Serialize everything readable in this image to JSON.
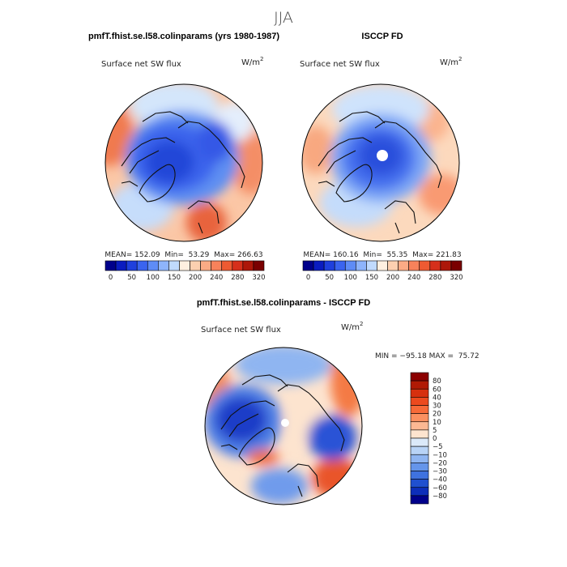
{
  "suptitle": "JJA",
  "panels": [
    {
      "title": "pmfT.fhist.se.l58.colinparams (yrs 1980-1987)",
      "field_label": "Surface net SW flux",
      "units_base": "W/m",
      "units_exp": "2",
      "stats_text": "MEAN= 152.09  Min=  53.29  Max= 266.63"
    },
    {
      "title": "ISCCP FD",
      "field_label": "Surface net SW flux",
      "units_base": "W/m",
      "units_exp": "2",
      "stats_text": "MEAN= 160.16  Min=  55.35  Max= 221.83"
    },
    {
      "title": "pmfT.fhist.se.l58.colinparams - ISCCP FD",
      "field_label": "Surface net SW flux",
      "units_base": "W/m",
      "units_exp": "2",
      "stats_text": "MIN = −95.18 MAX =  75.72"
    }
  ],
  "chart_data": [
    {
      "type": "heatmap",
      "projection": "north-polar-stereographic",
      "title": "pmfT.fhist.se.l58.colinparams (yrs 1980-1987)",
      "variable": "Surface net SW flux",
      "units": "W/m2",
      "mean": 152.09,
      "min": 53.29,
      "max": 266.63,
      "colorbar": {
        "orientation": "horizontal",
        "tick_labels": [
          "0",
          "50",
          "100",
          "150",
          "200",
          "240",
          "280",
          "320"
        ],
        "colors": [
          "#00008b",
          "#0a1cc0",
          "#1f40dd",
          "#3a64ef",
          "#5e8cf6",
          "#8eb4fb",
          "#c0dafd",
          "#fef0e0",
          "#fcd0b0",
          "#fbab85",
          "#f7825b",
          "#ee5a32",
          "#d6301b",
          "#ad1709",
          "#7a0000"
        ]
      }
    },
    {
      "type": "heatmap",
      "projection": "north-polar-stereographic",
      "title": "ISCCP FD",
      "variable": "Surface net SW flux",
      "units": "W/m2",
      "mean": 160.16,
      "min": 55.35,
      "max": 221.83,
      "colorbar": {
        "orientation": "horizontal",
        "tick_labels": [
          "0",
          "50",
          "100",
          "150",
          "200",
          "240",
          "280",
          "320"
        ],
        "colors": [
          "#00008b",
          "#0a1cc0",
          "#1f40dd",
          "#3a64ef",
          "#5e8cf6",
          "#8eb4fb",
          "#c0dafd",
          "#fef0e0",
          "#fcd0b0",
          "#fbab85",
          "#f7825b",
          "#ee5a32",
          "#d6301b",
          "#ad1709",
          "#7a0000"
        ]
      }
    },
    {
      "type": "heatmap",
      "projection": "north-polar-stereographic",
      "title": "pmfT.fhist.se.l58.colinparams - ISCCP FD",
      "variable": "Surface net SW flux",
      "units": "W/m2",
      "min": -95.18,
      "max": 75.72,
      "colorbar": {
        "orientation": "vertical",
        "tick_labels": [
          "80",
          "60",
          "40",
          "30",
          "20",
          "10",
          "5",
          "0",
          "−5",
          "−10",
          "−20",
          "−30",
          "−40",
          "−60",
          "−80"
        ],
        "colors": [
          "#8b0000",
          "#b01a05",
          "#d6300f",
          "#ec4a1e",
          "#f76a38",
          "#fb9060",
          "#fcb893",
          "#fde4cf",
          "#dbe9f9",
          "#b8d3f6",
          "#8fb5f1",
          "#6595ea",
          "#3f72df",
          "#2050cf",
          "#0d2eba",
          "#00008b"
        ]
      }
    }
  ]
}
